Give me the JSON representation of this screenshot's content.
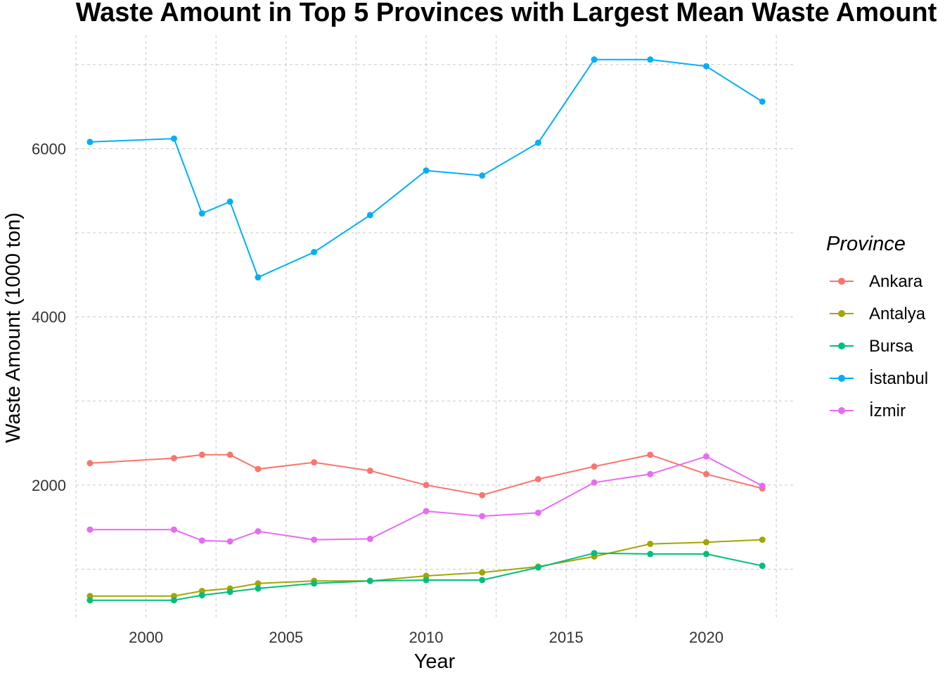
{
  "chart_data": {
    "type": "line",
    "title": "Waste Amount in Top 5 Provinces with Largest Mean Waste Amount",
    "xlabel": "Year",
    "ylabel": "Waste Amount (1000 ton)",
    "xlim": [
      1997.5,
      2023.1
    ],
    "ylim": [
      410,
      7350
    ],
    "x_ticks": [
      2000,
      2005,
      2010,
      2015,
      2020
    ],
    "y_ticks": [
      2000,
      4000,
      6000
    ],
    "grid": true,
    "legend_title": "Province",
    "legend_position": "right",
    "x": [
      1998,
      2001,
      2002,
      2003,
      2004,
      2006,
      2008,
      2010,
      2012,
      2014,
      2016,
      2018,
      2020,
      2022
    ],
    "series": [
      {
        "name": "Ankara",
        "color": "#F8766D",
        "values": [
          2260,
          2320,
          2360,
          2360,
          2190,
          2270,
          2170,
          2000,
          1880,
          2070,
          2220,
          2360,
          2130,
          1960
        ]
      },
      {
        "name": "Antalya",
        "color": "#A3A500",
        "values": [
          680,
          680,
          740,
          770,
          830,
          860,
          860,
          920,
          960,
          1030,
          1150,
          1300,
          1320,
          1350
        ]
      },
      {
        "name": "Bursa",
        "color": "#00BF7D",
        "values": [
          630,
          630,
          690,
          730,
          770,
          830,
          860,
          870,
          870,
          1020,
          1190,
          1180,
          1180,
          1040
        ]
      },
      {
        "name": "İstanbul",
        "color": "#00B0F6",
        "values": [
          6080,
          6120,
          5230,
          5370,
          4470,
          4770,
          5210,
          5740,
          5680,
          6070,
          7060,
          7060,
          6980,
          6560
        ]
      },
      {
        "name": "İzmir",
        "color": "#E76BF3",
        "values": [
          1470,
          1470,
          1340,
          1330,
          1450,
          1350,
          1360,
          1690,
          1630,
          1670,
          2030,
          2130,
          2340,
          1990
        ]
      }
    ]
  }
}
